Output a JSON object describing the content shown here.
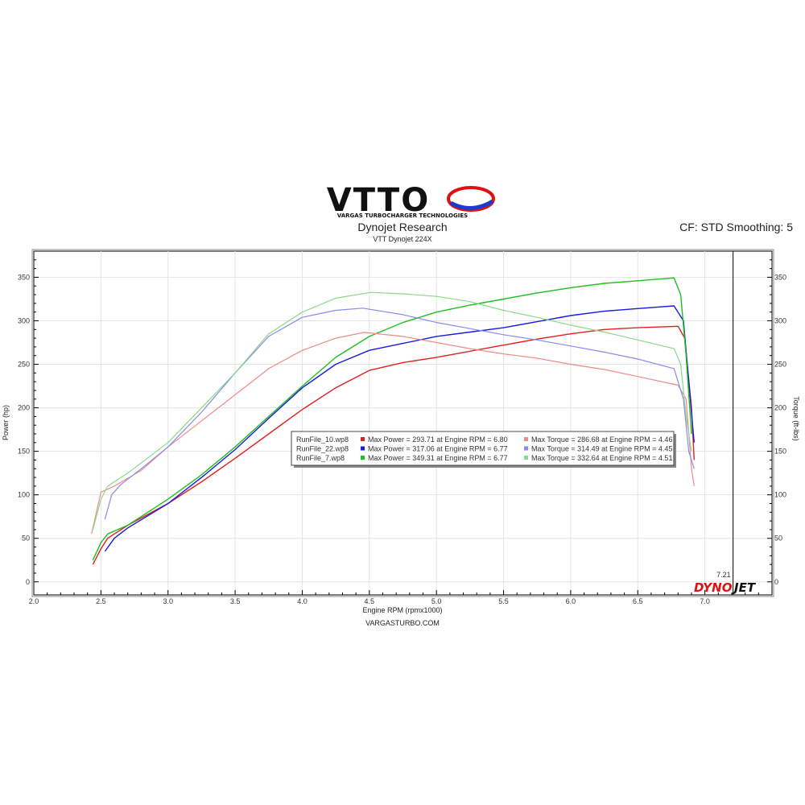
{
  "header": {
    "logo_text": "VTTO",
    "logo_sub": "VARGAS TURBOCHARGER TECHNOLOGIES",
    "title": "Dynojet Research",
    "subtitle": "VTT Dynojet 224X",
    "cf_label": "CF: STD Smoothing: 5"
  },
  "footer": {
    "source": "VARGASTURBO.COM",
    "brand_a": "DYNO",
    "brand_b": "JET"
  },
  "colors": {
    "red": "#e02020",
    "blue": "#1a1ae0",
    "green": "#1fbf1f",
    "red_torque": "#f08a8a",
    "blue_torque": "#8a8af0",
    "green_torque": "#8ad88a"
  },
  "chart_data": {
    "type": "line",
    "xlabel": "Engine RPM (rpmx1000)",
    "ylabel_left": "Power (hp)",
    "ylabel_right": "Torque (ft-lbs)",
    "xlim": [
      2.0,
      7.5
    ],
    "ylim": [
      -15,
      380
    ],
    "x_ticks": [
      2.0,
      2.5,
      3.0,
      3.5,
      4.0,
      4.5,
      5.0,
      5.5,
      6.0,
      6.5,
      7.0
    ],
    "x_tick_labels": [
      "2.0",
      "2.5",
      "3.0",
      "3.5",
      "4.0",
      "4.5",
      "5.0",
      "5.5",
      "6.0",
      "6.5",
      "7.0"
    ],
    "y_ticks": [
      0,
      50,
      100,
      150,
      200,
      250,
      300,
      350
    ],
    "y_tick_labels": [
      "0",
      "50",
      "100",
      "150",
      "200",
      "250",
      "300",
      "350"
    ],
    "marker_line": {
      "x": 7.21,
      "label": "7.21"
    },
    "grid": true,
    "series": [
      {
        "name": "RunFile_10.wp8",
        "kind": "power",
        "color": "#e02020",
        "x": [
          2.44,
          2.5,
          2.55,
          2.7,
          3.0,
          3.25,
          3.5,
          3.75,
          4.0,
          4.25,
          4.5,
          4.75,
          5.0,
          5.25,
          5.5,
          5.75,
          6.0,
          6.25,
          6.5,
          6.8,
          6.85,
          6.9,
          6.92
        ],
        "y": [
          20,
          38,
          50,
          65,
          90,
          115,
          142,
          170,
          198,
          223,
          243,
          252,
          258,
          265,
          272,
          279,
          285,
          290,
          292,
          293.7,
          280,
          200,
          140
        ]
      },
      {
        "name": "RunFile_22.wp8",
        "kind": "power",
        "color": "#1a1ae0",
        "x": [
          2.53,
          2.6,
          2.7,
          3.0,
          3.25,
          3.5,
          3.75,
          4.0,
          4.25,
          4.5,
          4.75,
          5.0,
          5.25,
          5.5,
          5.75,
          6.0,
          6.25,
          6.5,
          6.77,
          6.84,
          6.88,
          6.92
        ],
        "y": [
          35,
          50,
          62,
          90,
          120,
          152,
          188,
          223,
          250,
          266,
          274,
          282,
          287,
          292,
          299,
          306,
          311,
          314,
          317.1,
          300,
          230,
          160
        ]
      },
      {
        "name": "RunFile_7.wp8",
        "kind": "power",
        "color": "#1fbf1f",
        "x": [
          2.44,
          2.5,
          2.55,
          2.7,
          3.0,
          3.25,
          3.5,
          3.75,
          4.0,
          4.25,
          4.5,
          4.75,
          5.0,
          5.25,
          5.5,
          5.75,
          6.0,
          6.25,
          6.5,
          6.77,
          6.82,
          6.86,
          6.9
        ],
        "y": [
          25,
          45,
          55,
          65,
          95,
          123,
          155,
          190,
          225,
          258,
          282,
          298,
          310,
          318,
          325,
          332,
          338,
          343,
          346,
          349.3,
          330,
          260,
          170
        ]
      },
      {
        "name": "RunFile_10.wp8",
        "kind": "torque",
        "color": "#f08a8a",
        "x": [
          2.43,
          2.5,
          2.6,
          2.8,
          3.0,
          3.25,
          3.5,
          3.75,
          4.0,
          4.25,
          4.46,
          4.75,
          5.0,
          5.25,
          5.5,
          5.75,
          6.0,
          6.25,
          6.5,
          6.8,
          6.86,
          6.9,
          6.92
        ],
        "y": [
          55,
          103,
          110,
          128,
          155,
          185,
          215,
          245,
          266,
          280,
          286.7,
          282,
          275,
          268,
          262,
          257,
          250,
          244,
          236,
          226,
          210,
          130,
          110
        ]
      },
      {
        "name": "RunFile_22.wp8",
        "kind": "torque",
        "color": "#8a8af0",
        "x": [
          2.53,
          2.58,
          2.65,
          2.8,
          3.0,
          3.25,
          3.5,
          3.75,
          4.0,
          4.25,
          4.45,
          4.75,
          5.0,
          5.25,
          5.5,
          5.75,
          6.0,
          6.25,
          6.5,
          6.77,
          6.84,
          6.88,
          6.92
        ],
        "y": [
          72,
          100,
          112,
          130,
          155,
          195,
          240,
          282,
          304,
          312,
          314.5,
          307,
          298,
          291,
          284,
          278,
          271,
          264,
          256,
          245,
          210,
          150,
          130
        ]
      },
      {
        "name": "RunFile_7.wp8",
        "kind": "torque",
        "color": "#8ad88a",
        "x": [
          2.44,
          2.5,
          2.55,
          2.7,
          3.0,
          3.25,
          3.5,
          3.75,
          4.0,
          4.25,
          4.51,
          4.75,
          5.0,
          5.25,
          5.5,
          5.75,
          6.0,
          6.25,
          6.5,
          6.77,
          6.82,
          6.86,
          6.9
        ],
        "y": [
          60,
          95,
          110,
          125,
          160,
          200,
          240,
          285,
          310,
          326,
          332.6,
          331,
          328,
          322,
          312,
          304,
          295,
          287,
          278,
          268,
          250,
          190,
          150
        ]
      }
    ],
    "legend": {
      "placement": "center",
      "rows": [
        {
          "file": "RunFile_10.wp8",
          "color": "#e02020",
          "torque_color": "#f08a8a",
          "power_text": "Max Power = 293.71 at Engine RPM = 6.80",
          "torque_text": "Max Torque = 286.68 at Engine RPM = 4.46"
        },
        {
          "file": "RunFile_22.wp8",
          "color": "#1a1ae0",
          "torque_color": "#8a8af0",
          "power_text": "Max Power = 317.06 at Engine RPM = 6.77",
          "torque_text": "Max Torque = 314.49 at Engine RPM = 4.45"
        },
        {
          "file": "RunFile_7.wp8",
          "color": "#1fbf1f",
          "torque_color": "#8ad88a",
          "power_text": "Max Power = 349.31 at Engine RPM = 6.77",
          "torque_text": "Max Torque = 332.64 at Engine RPM = 4.51"
        }
      ]
    }
  }
}
